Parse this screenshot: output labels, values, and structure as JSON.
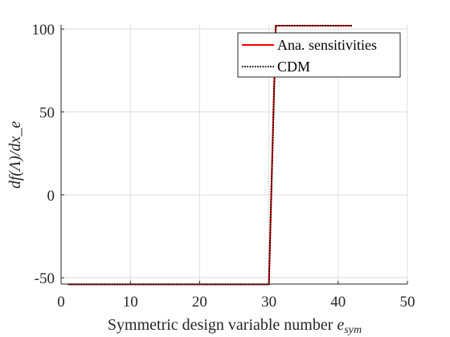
{
  "chart_data": {
    "type": "line",
    "title": "",
    "xlabel": "Symmetric design variable number",
    "xlabel_math": "e",
    "xlabel_sub": "sym",
    "ylabel": "df(Λ)/dx_e",
    "xlim": [
      0,
      50
    ],
    "ylim": [
      -54,
      100
    ],
    "xticks": [
      0,
      10,
      20,
      30,
      40,
      50
    ],
    "yticks": [
      -50,
      0,
      50,
      100
    ],
    "ytick_labels": [
      "-50",
      "0",
      "50",
      "100"
    ],
    "xtick_labels": [
      "0",
      "10",
      "20",
      "30",
      "40",
      "50"
    ],
    "grid": true,
    "legend": {
      "location": "top-right"
    },
    "series": [
      {
        "name": "Ana. sensitivities",
        "color": "#ff0000",
        "style": "solid",
        "x": [
          1,
          30,
          31,
          42
        ],
        "y": [
          -54,
          -54,
          102,
          102
        ]
      },
      {
        "name": "CDM",
        "color": "#000000",
        "style": "dotted",
        "x": [
          1,
          30,
          31,
          42
        ],
        "y": [
          -54,
          -54,
          102,
          102
        ]
      }
    ]
  }
}
